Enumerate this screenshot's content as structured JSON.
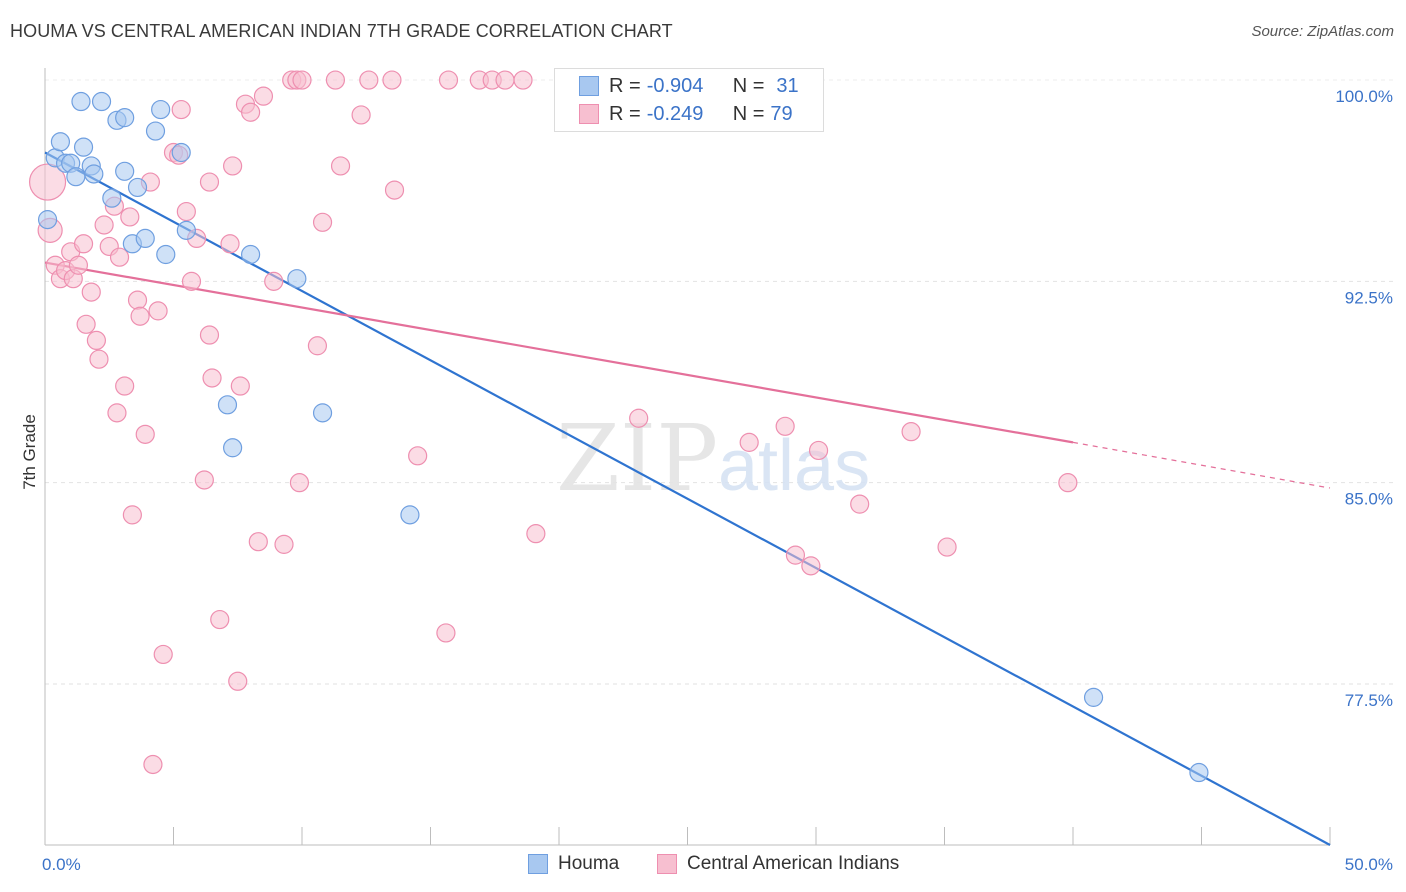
{
  "header": {
    "title": "HOUMA VS CENTRAL AMERICAN INDIAN 7TH GRADE CORRELATION CHART",
    "source": "Source: ZipAtlas.com"
  },
  "watermark": {
    "zip": "ZIP",
    "atlas": "atlas"
  },
  "legend": {
    "rows": [
      {
        "r_label": "R =",
        "r_value": "-0.904",
        "n_label": "N =",
        "n_value": "31",
        "color": "#a8c8f0",
        "stroke": "#6f9fe0"
      },
      {
        "r_label": "R =",
        "r_value": "-0.249",
        "n_label": "N =",
        "n_value": "79",
        "color": "#f7bfd0",
        "stroke": "#ee8fb0"
      }
    ]
  },
  "bottom_legend": [
    {
      "label": "Houma",
      "color": "#a8c8f0",
      "stroke": "#6f9fe0"
    },
    {
      "label": "Central American Indians",
      "color": "#f7bfd0",
      "stroke": "#ee8fb0"
    }
  ],
  "chart_data": {
    "type": "scatter",
    "title": "HOUMA VS CENTRAL AMERICAN INDIAN 7TH GRADE CORRELATION CHART",
    "xlabel": "",
    "ylabel": "7th Grade",
    "xlim": [
      0,
      50
    ],
    "ylim": [
      71.5,
      100.3
    ],
    "x_tick_labels": [
      "0.0%",
      "50.0%"
    ],
    "y_ticks": [
      100.0,
      92.5,
      85.0,
      77.5
    ],
    "y_tick_labels": [
      "100.0%",
      "92.5%",
      "85.0%",
      "77.5%"
    ],
    "grid": true,
    "legend_position": "top-center",
    "series": [
      {
        "name": "Houma",
        "color": "#6f9fe0",
        "fill": "#a8c8f0",
        "trend_color": "#2f74d0",
        "trend": {
          "x": [
            0,
            50
          ],
          "y": [
            97.3,
            71.5
          ]
        },
        "points": [
          {
            "x": 0.1,
            "y": 94.8
          },
          {
            "x": 0.4,
            "y": 97.1
          },
          {
            "x": 0.6,
            "y": 97.7
          },
          {
            "x": 0.8,
            "y": 96.9
          },
          {
            "x": 1.0,
            "y": 96.9
          },
          {
            "x": 1.2,
            "y": 96.4
          },
          {
            "x": 1.4,
            "y": 99.2
          },
          {
            "x": 1.5,
            "y": 97.5
          },
          {
            "x": 1.8,
            "y": 96.8
          },
          {
            "x": 1.9,
            "y": 96.5
          },
          {
            "x": 2.2,
            "y": 99.2
          },
          {
            "x": 2.6,
            "y": 95.6
          },
          {
            "x": 2.8,
            "y": 98.5
          },
          {
            "x": 3.1,
            "y": 98.6
          },
          {
            "x": 3.1,
            "y": 96.6
          },
          {
            "x": 3.4,
            "y": 93.9
          },
          {
            "x": 3.6,
            "y": 96.0
          },
          {
            "x": 3.9,
            "y": 94.1
          },
          {
            "x": 4.3,
            "y": 98.1
          },
          {
            "x": 4.5,
            "y": 98.9
          },
          {
            "x": 4.7,
            "y": 93.5
          },
          {
            "x": 5.3,
            "y": 97.3
          },
          {
            "x": 5.5,
            "y": 94.4
          },
          {
            "x": 7.1,
            "y": 87.9
          },
          {
            "x": 7.3,
            "y": 86.3
          },
          {
            "x": 8.0,
            "y": 93.5
          },
          {
            "x": 9.8,
            "y": 92.6
          },
          {
            "x": 10.8,
            "y": 87.6
          },
          {
            "x": 14.2,
            "y": 83.8
          },
          {
            "x": 40.8,
            "y": 77.0
          },
          {
            "x": 44.9,
            "y": 74.2
          }
        ]
      },
      {
        "name": "Central American Indians",
        "color": "#ee8fb0",
        "fill": "#f7bfd0",
        "trend_color": "#e4709a",
        "trend": {
          "x": [
            0,
            40
          ],
          "y": [
            93.2,
            86.5
          ]
        },
        "trend_dashed": {
          "x": [
            40,
            50
          ],
          "y": [
            86.5,
            84.8
          ]
        },
        "points": [
          {
            "x": 0.1,
            "y": 96.2
          },
          {
            "x": 0.2,
            "y": 94.4
          },
          {
            "x": 0.4,
            "y": 93.1
          },
          {
            "x": 0.6,
            "y": 92.6
          },
          {
            "x": 0.8,
            "y": 92.9
          },
          {
            "x": 1.0,
            "y": 93.6
          },
          {
            "x": 1.1,
            "y": 92.6
          },
          {
            "x": 1.3,
            "y": 93.1
          },
          {
            "x": 1.5,
            "y": 93.9
          },
          {
            "x": 1.6,
            "y": 90.9
          },
          {
            "x": 1.8,
            "y": 92.1
          },
          {
            "x": 2.0,
            "y": 90.3
          },
          {
            "x": 2.1,
            "y": 89.6
          },
          {
            "x": 2.3,
            "y": 94.6
          },
          {
            "x": 2.5,
            "y": 93.8
          },
          {
            "x": 2.7,
            "y": 95.3
          },
          {
            "x": 2.8,
            "y": 87.6
          },
          {
            "x": 2.9,
            "y": 93.4
          },
          {
            "x": 3.1,
            "y": 88.6
          },
          {
            "x": 3.3,
            "y": 94.9
          },
          {
            "x": 3.4,
            "y": 83.8
          },
          {
            "x": 3.6,
            "y": 91.8
          },
          {
            "x": 3.7,
            "y": 91.2
          },
          {
            "x": 3.9,
            "y": 86.8
          },
          {
            "x": 4.1,
            "y": 96.2
          },
          {
            "x": 4.2,
            "y": 74.5
          },
          {
            "x": 4.4,
            "y": 91.4
          },
          {
            "x": 4.6,
            "y": 78.6
          },
          {
            "x": 5.0,
            "y": 97.3
          },
          {
            "x": 5.2,
            "y": 97.2
          },
          {
            "x": 5.3,
            "y": 98.9
          },
          {
            "x": 5.5,
            "y": 95.1
          },
          {
            "x": 5.7,
            "y": 92.5
          },
          {
            "x": 5.9,
            "y": 94.1
          },
          {
            "x": 6.2,
            "y": 85.1
          },
          {
            "x": 6.4,
            "y": 96.2
          },
          {
            "x": 6.4,
            "y": 90.5
          },
          {
            "x": 6.5,
            "y": 88.9
          },
          {
            "x": 6.8,
            "y": 79.9
          },
          {
            "x": 7.2,
            "y": 93.9
          },
          {
            "x": 7.3,
            "y": 96.8
          },
          {
            "x": 7.5,
            "y": 77.6
          },
          {
            "x": 7.6,
            "y": 88.6
          },
          {
            "x": 7.8,
            "y": 99.1
          },
          {
            "x": 8.0,
            "y": 98.8
          },
          {
            "x": 8.3,
            "y": 82.8
          },
          {
            "x": 8.5,
            "y": 99.4
          },
          {
            "x": 8.9,
            "y": 92.5
          },
          {
            "x": 9.3,
            "y": 82.7
          },
          {
            "x": 9.6,
            "y": 100.0
          },
          {
            "x": 9.8,
            "y": 100.0
          },
          {
            "x": 9.9,
            "y": 85.0
          },
          {
            "x": 10.0,
            "y": 100.0
          },
          {
            "x": 10.6,
            "y": 90.1
          },
          {
            "x": 10.8,
            "y": 94.7
          },
          {
            "x": 11.3,
            "y": 100.0
          },
          {
            "x": 11.5,
            "y": 96.8
          },
          {
            "x": 12.3,
            "y": 98.7
          },
          {
            "x": 12.6,
            "y": 100.0
          },
          {
            "x": 13.5,
            "y": 100.0
          },
          {
            "x": 13.6,
            "y": 95.9
          },
          {
            "x": 14.5,
            "y": 86.0
          },
          {
            "x": 15.7,
            "y": 100.0
          },
          {
            "x": 15.6,
            "y": 79.4
          },
          {
            "x": 16.9,
            "y": 100.0
          },
          {
            "x": 17.4,
            "y": 100.0
          },
          {
            "x": 17.9,
            "y": 100.0
          },
          {
            "x": 18.6,
            "y": 100.0
          },
          {
            "x": 19.1,
            "y": 83.1
          },
          {
            "x": 23.1,
            "y": 87.4
          },
          {
            "x": 27.4,
            "y": 86.5
          },
          {
            "x": 28.8,
            "y": 87.1
          },
          {
            "x": 29.2,
            "y": 82.3
          },
          {
            "x": 29.8,
            "y": 81.9
          },
          {
            "x": 30.1,
            "y": 86.2
          },
          {
            "x": 31.7,
            "y": 84.2
          },
          {
            "x": 33.7,
            "y": 86.9
          },
          {
            "x": 35.1,
            "y": 82.6
          },
          {
            "x": 39.8,
            "y": 85.0
          }
        ]
      }
    ]
  }
}
